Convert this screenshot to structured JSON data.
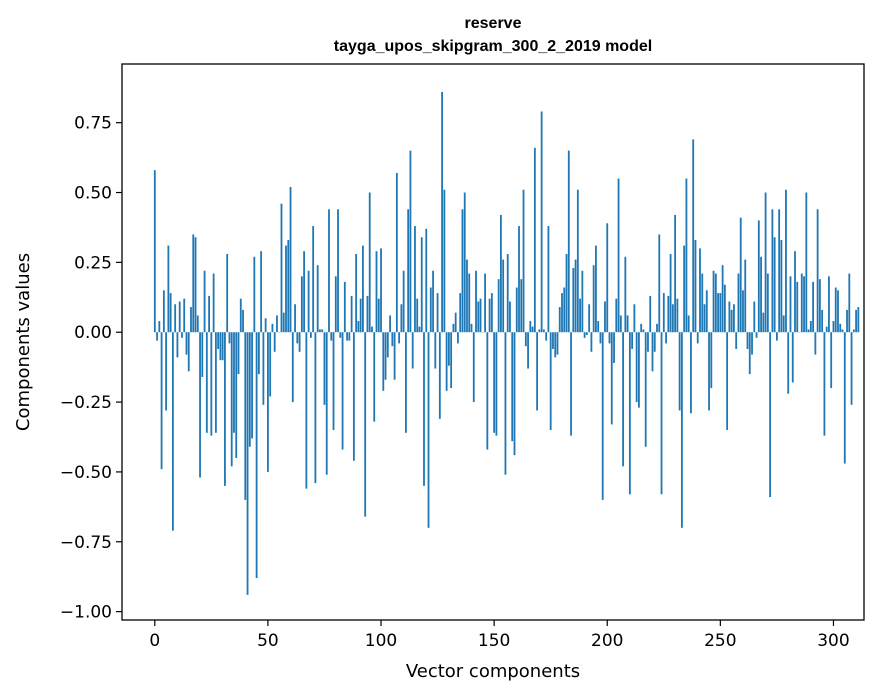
{
  "chart_data": {
    "type": "bar",
    "title_line1": "reserve",
    "title_line2": "tayga_upos_skipgram_300_2_2019 model",
    "xlabel": "Vector components",
    "ylabel": "Components values",
    "xlim": [
      -14.5,
      313.5
    ],
    "ylim": [
      -1.03,
      0.96
    ],
    "x_ticks": [
      {
        "value": 0,
        "label": "0"
      },
      {
        "value": 50,
        "label": "50"
      },
      {
        "value": 100,
        "label": "100"
      },
      {
        "value": 150,
        "label": "150"
      },
      {
        "value": 200,
        "label": "200"
      },
      {
        "value": 250,
        "label": "250"
      },
      {
        "value": 300,
        "label": "300"
      }
    ],
    "y_ticks": [
      {
        "value": 0.75,
        "label": "0.75"
      },
      {
        "value": 0.5,
        "label": "0.50"
      },
      {
        "value": 0.25,
        "label": "0.25"
      },
      {
        "value": 0.0,
        "label": "0.00"
      },
      {
        "value": -0.25,
        "label": "−0.25"
      },
      {
        "value": -0.5,
        "label": "−0.50"
      },
      {
        "value": -0.75,
        "label": "−0.75"
      },
      {
        "value": -1.0,
        "label": "−1.00"
      }
    ],
    "bar_color": "#1f77b4",
    "grid": false,
    "values": [
      0.58,
      -0.03,
      0.04,
      -0.49,
      0.15,
      -0.28,
      0.31,
      0.14,
      -0.71,
      0.1,
      -0.09,
      0.11,
      -0.02,
      0.12,
      -0.08,
      -0.14,
      0.09,
      0.35,
      0.34,
      0.06,
      -0.52,
      -0.16,
      0.22,
      -0.36,
      0.13,
      -0.37,
      0.21,
      -0.36,
      -0.06,
      -0.1,
      -0.1,
      -0.55,
      0.28,
      -0.04,
      -0.48,
      -0.36,
      -0.45,
      -0.15,
      0.12,
      0.08,
      -0.6,
      -0.94,
      -0.41,
      -0.38,
      0.27,
      -0.88,
      -0.15,
      0.29,
      -0.26,
      0.05,
      -0.5,
      -0.23,
      0.03,
      -0.07,
      0.06,
      0.0,
      0.46,
      0.07,
      0.31,
      0.33,
      0.52,
      -0.25,
      0.1,
      -0.04,
      -0.07,
      0.2,
      0.29,
      -0.56,
      0.22,
      -0.02,
      0.38,
      -0.54,
      0.24,
      0.01,
      0.01,
      -0.26,
      -0.51,
      0.44,
      -0.03,
      -0.35,
      0.2,
      0.44,
      -0.02,
      -0.42,
      0.18,
      -0.03,
      -0.03,
      0.13,
      -0.46,
      0.28,
      0.04,
      0.12,
      0.31,
      -0.66,
      0.13,
      0.5,
      0.02,
      -0.32,
      0.29,
      0.12,
      0.3,
      -0.21,
      -0.17,
      -0.09,
      0.06,
      -0.05,
      -0.17,
      0.57,
      -0.04,
      0.1,
      0.22,
      -0.36,
      0.44,
      0.65,
      -0.13,
      0.38,
      0.12,
      0.02,
      0.34,
      -0.55,
      0.37,
      -0.7,
      0.16,
      0.22,
      -0.13,
      0.14,
      -0.31,
      0.86,
      0.51,
      -0.21,
      -0.12,
      -0.2,
      0.03,
      0.07,
      -0.04,
      0.14,
      0.44,
      0.5,
      0.26,
      0.21,
      0.03,
      -0.25,
      0.22,
      0.11,
      0.12,
      0.0,
      0.21,
      -0.42,
      0.12,
      0.14,
      -0.36,
      -0.37,
      0.19,
      0.42,
      0.26,
      -0.51,
      0.28,
      0.11,
      -0.39,
      -0.44,
      0.16,
      0.38,
      0.19,
      0.51,
      -0.05,
      -0.13,
      0.04,
      0.02,
      0.66,
      -0.28,
      0.01,
      0.79,
      0.01,
      -0.03,
      0.38,
      -0.35,
      -0.06,
      -0.09,
      -0.08,
      0.09,
      0.14,
      0.16,
      0.28,
      0.65,
      -0.37,
      0.23,
      0.26,
      0.51,
      0.12,
      0.22,
      -0.02,
      -0.01,
      0.1,
      -0.07,
      0.24,
      0.31,
      0.04,
      -0.04,
      -0.6,
      0.11,
      0.39,
      -0.04,
      -0.33,
      -0.11,
      0.12,
      0.55,
      0.06,
      -0.48,
      0.27,
      0.06,
      -0.58,
      -0.06,
      0.1,
      -0.25,
      -0.27,
      0.03,
      0.01,
      -0.41,
      -0.07,
      0.13,
      -0.14,
      -0.07,
      0.03,
      0.35,
      -0.58,
      0.14,
      -0.04,
      0.13,
      0.28,
      0.1,
      0.42,
      0.12,
      -0.28,
      -0.7,
      0.31,
      0.55,
      0.06,
      -0.29,
      0.69,
      0.33,
      -0.04,
      0.3,
      0.21,
      0.1,
      0.15,
      -0.28,
      -0.2,
      0.22,
      0.21,
      0.14,
      0.14,
      0.24,
      0.17,
      -0.35,
      0.11,
      0.08,
      0.1,
      -0.06,
      0.21,
      0.41,
      0.15,
      0.26,
      -0.06,
      -0.15,
      -0.08,
      0.11,
      -0.02,
      0.4,
      0.27,
      0.07,
      0.5,
      0.21,
      -0.59,
      0.44,
      0.34,
      -0.03,
      0.44,
      0.33,
      0.06,
      0.51,
      -0.22,
      0.2,
      -0.18,
      0.29,
      0.18,
      0.0,
      0.21,
      0.2,
      0.5,
      0.01,
      0.04,
      0.18,
      -0.08,
      0.44,
      0.19,
      0.08,
      -0.37,
      0.02,
      0.2,
      -0.2,
      0.04,
      0.16,
      0.15,
      0.03,
      0.01,
      -0.47,
      0.08,
      0.21,
      -0.26,
      0.01,
      0.08,
      0.09
    ]
  }
}
